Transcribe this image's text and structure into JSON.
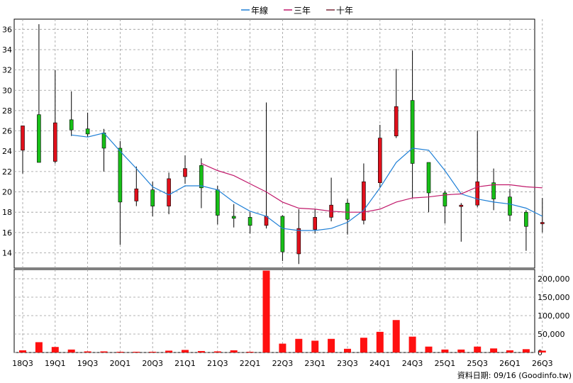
{
  "legend": {
    "items": [
      {
        "label": "年線",
        "color": "#1e7fd6"
      },
      {
        "label": "三年",
        "color": "#c0186a"
      },
      {
        "label": "十年",
        "color": "#7a2a3a"
      }
    ]
  },
  "footer": {
    "source": "資料日期: 09/16  (Goodinfo.tw)"
  },
  "colors": {
    "up": "#e0101c",
    "down": "#18c018",
    "volume": "#ff1010",
    "grid": "#9a9a9a",
    "ma1": "#1e7fd6",
    "ma3": "#c0186a"
  },
  "chart_data": [
    {
      "type": "candlestick",
      "ylim": [
        12.5,
        37
      ],
      "yticks": [
        14,
        16,
        18,
        20,
        22,
        24,
        26,
        28,
        30,
        32,
        34,
        36
      ],
      "x_tick_labels": [
        "18Q3",
        "19Q1",
        "19Q3",
        "20Q1",
        "20Q3",
        "21Q1",
        "21Q3",
        "22Q1",
        "22Q3",
        "23Q1",
        "23Q3",
        "24Q1",
        "24Q3",
        "25Q1",
        "25Q3",
        "26Q1",
        "26Q3"
      ],
      "grid": true,
      "legend_position": "top-center",
      "candles": [
        {
          "q": "18Q3",
          "open": 24.1,
          "close": 26.5,
          "high": 26.5,
          "low": 21.8
        },
        {
          "q": "18Q4",
          "open": 27.6,
          "close": 22.9,
          "high": 36.5,
          "low": 22.9
        },
        {
          "q": "19Q1",
          "open": 23.0,
          "close": 26.8,
          "high": 32.0,
          "low": 22.8
        },
        {
          "q": "19Q2",
          "open": 27.1,
          "close": 26.1,
          "high": 29.9,
          "low": 25.5
        },
        {
          "q": "19Q3",
          "open": 26.2,
          "close": 25.7,
          "high": 27.8,
          "low": 25.4
        },
        {
          "q": "19Q4",
          "open": 25.8,
          "close": 24.3,
          "high": 26.2,
          "low": 22.0
        },
        {
          "q": "20Q1",
          "open": 24.3,
          "close": 19.0,
          "high": 25.0,
          "low": 14.8
        },
        {
          "q": "20Q2",
          "open": 19.1,
          "close": 20.3,
          "high": 22.5,
          "low": 18.6
        },
        {
          "q": "20Q3",
          "open": 20.2,
          "close": 18.6,
          "high": 21.0,
          "low": 17.6
        },
        {
          "q": "20Q4",
          "open": 18.6,
          "close": 21.3,
          "high": 21.9,
          "low": 17.8
        },
        {
          "q": "21Q1",
          "open": 21.5,
          "close": 22.3,
          "high": 23.6,
          "low": 20.8
        },
        {
          "q": "21Q2",
          "open": 22.6,
          "close": 20.4,
          "high": 23.3,
          "low": 18.4
        },
        {
          "q": "21Q3",
          "open": 20.2,
          "close": 17.7,
          "high": 20.6,
          "low": 16.8
        },
        {
          "q": "21Q4",
          "open": 17.6,
          "close": 17.4,
          "high": 18.8,
          "low": 16.5
        },
        {
          "q": "22Q1",
          "open": 17.5,
          "close": 16.7,
          "high": 18.0,
          "low": 15.9
        },
        {
          "q": "22Q2",
          "open": 16.7,
          "close": 17.6,
          "high": 28.8,
          "low": 16.4
        },
        {
          "q": "22Q3",
          "open": 17.6,
          "close": 14.1,
          "high": 17.7,
          "low": 13.2
        },
        {
          "q": "22Q4",
          "open": 13.9,
          "close": 16.4,
          "high": 18.3,
          "low": 12.9
        },
        {
          "q": "23Q1",
          "open": 16.3,
          "close": 17.5,
          "high": 18.3,
          "low": 15.9
        },
        {
          "q": "23Q2",
          "open": 17.5,
          "close": 18.7,
          "high": 21.4,
          "low": 17.1
        },
        {
          "q": "23Q3",
          "open": 18.9,
          "close": 17.3,
          "high": 19.3,
          "low": 15.8
        },
        {
          "q": "23Q4",
          "open": 17.2,
          "close": 21.0,
          "high": 22.8,
          "low": 16.8
        },
        {
          "q": "24Q1",
          "open": 20.9,
          "close": 25.3,
          "high": 26.6,
          "low": 20.4
        },
        {
          "q": "24Q2",
          "open": 25.5,
          "close": 28.4,
          "high": 32.1,
          "low": 25.3
        },
        {
          "q": "24Q3",
          "open": 29.0,
          "close": 22.8,
          "high": 33.9,
          "low": 19.4
        },
        {
          "q": "24Q4",
          "open": 22.9,
          "close": 19.9,
          "high": 22.9,
          "low": 18.0
        },
        {
          "q": "25Q1",
          "open": 19.9,
          "close": 18.6,
          "high": 20.1,
          "low": 16.9
        },
        {
          "q": "25Q2",
          "open": 18.6,
          "close": 18.7,
          "high": 18.9,
          "low": 15.1
        },
        {
          "q": "25Q3",
          "open": 18.7,
          "close": 21.0,
          "high": 26.0,
          "low": 18.5
        },
        {
          "q": "25Q4",
          "open": 20.9,
          "close": 19.3,
          "high": 22.3,
          "low": 18.2
        },
        {
          "q": "26Q1",
          "open": 19.5,
          "close": 17.7,
          "high": 20.3,
          "low": 17.1
        },
        {
          "q": "26Q2",
          "open": 18.0,
          "close": 16.6,
          "high": 18.2,
          "low": 14.2
        },
        {
          "q": "26Q3",
          "open": 16.9,
          "close": 17.0,
          "high": 19.4,
          "low": 16.0
        }
      ],
      "series": [
        {
          "name": "年線",
          "points": [
            [
              3,
              25.6
            ],
            [
              4,
              25.4
            ],
            [
              5,
              25.8
            ],
            [
              6,
              24.0
            ],
            [
              7,
              22.3
            ],
            [
              8,
              20.5
            ],
            [
              9,
              19.7
            ],
            [
              10,
              20.6
            ],
            [
              11,
              20.6
            ],
            [
              12,
              20.2
            ],
            [
              13,
              19.0
            ],
            [
              14,
              18.1
            ],
            [
              15,
              17.6
            ],
            [
              16,
              16.4
            ],
            [
              17,
              16.2
            ],
            [
              18,
              16.2
            ],
            [
              19,
              16.4
            ],
            [
              20,
              17.0
            ],
            [
              21,
              18.2
            ],
            [
              22,
              20.4
            ],
            [
              23,
              22.9
            ],
            [
              24,
              24.3
            ],
            [
              25,
              24.1
            ],
            [
              26,
              22.1
            ],
            [
              27,
              19.8
            ],
            [
              28,
              19.3
            ],
            [
              29,
              19.0
            ],
            [
              30,
              18.8
            ],
            [
              31,
              18.4
            ],
            [
              32,
              17.6
            ]
          ]
        },
        {
          "name": "三年",
          "points": [
            [
              11,
              22.8
            ],
            [
              12,
              22.1
            ],
            [
              13,
              21.6
            ],
            [
              14,
              20.8
            ],
            [
              15,
              20.0
            ],
            [
              16,
              19.0
            ],
            [
              17,
              18.4
            ],
            [
              18,
              18.3
            ],
            [
              19,
              18.1
            ],
            [
              20,
              18.0
            ],
            [
              21,
              18.0
            ],
            [
              22,
              18.3
            ],
            [
              23,
              19.0
            ],
            [
              24,
              19.4
            ],
            [
              25,
              19.5
            ],
            [
              26,
              19.7
            ],
            [
              27,
              19.8
            ],
            [
              28,
              20.5
            ],
            [
              29,
              20.7
            ],
            [
              30,
              20.7
            ],
            [
              31,
              20.5
            ],
            [
              32,
              20.4
            ]
          ]
        }
      ]
    },
    {
      "type": "bar",
      "ylim": [
        0,
        225000
      ],
      "yticks": [
        0,
        50000,
        100000,
        150000,
        200000
      ],
      "ytick_labels": [
        "0",
        "50,000",
        "100,000",
        "150,000",
        "200,000"
      ],
      "values": [
        6000,
        28000,
        15000,
        8000,
        3000,
        3000,
        2000,
        2000,
        2000,
        5000,
        7000,
        4000,
        3000,
        6000,
        2000,
        222000,
        24000,
        37000,
        32000,
        37000,
        10000,
        40000,
        56000,
        88000,
        43000,
        16000,
        8000,
        8000,
        16000,
        11000,
        6000,
        9000,
        5000
      ]
    }
  ]
}
